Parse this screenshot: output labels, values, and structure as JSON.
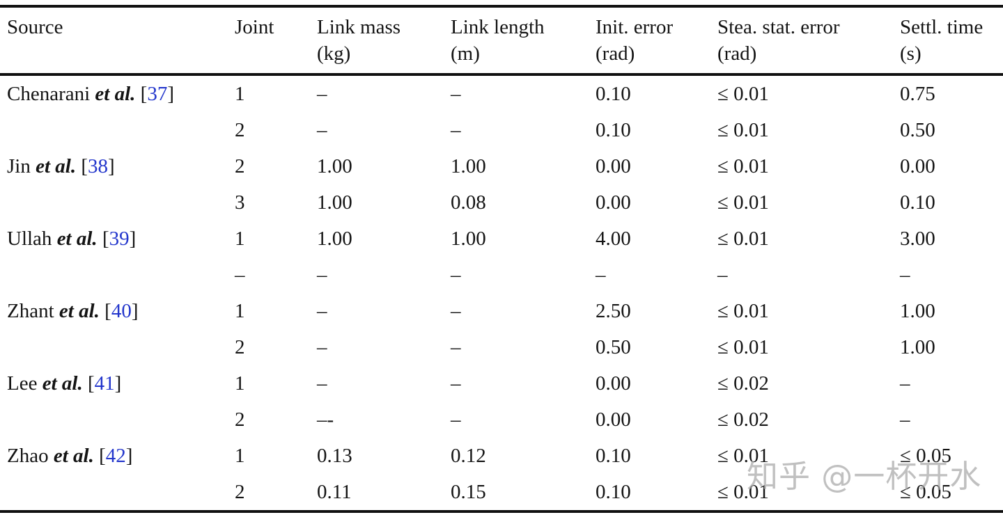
{
  "table": {
    "columns": [
      {
        "key": "source",
        "label": "Source",
        "unit": ""
      },
      {
        "key": "joint",
        "label": "Joint",
        "unit": ""
      },
      {
        "key": "link_mass",
        "label": "Link mass",
        "unit": "(kg)"
      },
      {
        "key": "link_length",
        "label": "Link length",
        "unit": "(m)"
      },
      {
        "key": "init_error",
        "label": "Init. error",
        "unit": "(rad)"
      },
      {
        "key": "stea_stat_error",
        "label": "Stea. stat. error",
        "unit": "(rad)"
      },
      {
        "key": "settl_time",
        "label": "Settl. time",
        "unit": "(s)"
      }
    ],
    "rows": [
      {
        "source_name": "Chenarani",
        "source_etal": "et al.",
        "ref": "37",
        "joint": "1",
        "link_mass": "–",
        "link_length": "–",
        "init_error": "0.10",
        "stea_stat_error": "≤ 0.01",
        "settl_time": "0.75"
      },
      {
        "source_name": "",
        "source_etal": "",
        "ref": "",
        "joint": "2",
        "link_mass": "–",
        "link_length": "–",
        "init_error": "0.10",
        "stea_stat_error": "≤ 0.01",
        "settl_time": "0.50"
      },
      {
        "source_name": "Jin",
        "source_etal": "et al.",
        "ref": "38",
        "joint": "2",
        "link_mass": "1.00",
        "link_length": "1.00",
        "init_error": "0.00",
        "stea_stat_error": "≤ 0.01",
        "settl_time": "0.00"
      },
      {
        "source_name": "",
        "source_etal": "",
        "ref": "",
        "joint": "3",
        "link_mass": "1.00",
        "link_length": "0.08",
        "init_error": "0.00",
        "stea_stat_error": "≤ 0.01",
        "settl_time": "0.10"
      },
      {
        "source_name": "Ullah",
        "source_etal": "et al.",
        "ref": "39",
        "joint": "1",
        "link_mass": "1.00",
        "link_length": "1.00",
        "init_error": "4.00",
        "stea_stat_error": "≤ 0.01",
        "settl_time": "3.00"
      },
      {
        "source_name": "",
        "source_etal": "",
        "ref": "",
        "joint": "–",
        "link_mass": "–",
        "link_length": "–",
        "init_error": "–",
        "stea_stat_error": "–",
        "settl_time": "–"
      },
      {
        "source_name": "Zhant",
        "source_etal": "et al.",
        "ref": "40",
        "joint": "1",
        "link_mass": "–",
        "link_length": "–",
        "init_error": "2.50",
        "stea_stat_error": "≤ 0.01",
        "settl_time": "1.00"
      },
      {
        "source_name": "",
        "source_etal": "",
        "ref": "",
        "joint": "2",
        "link_mass": "–",
        "link_length": "–",
        "init_error": "0.50",
        "stea_stat_error": "≤ 0.01",
        "settl_time": "1.00"
      },
      {
        "source_name": "Lee",
        "source_etal": "et al.",
        "ref": "41",
        "joint": "1",
        "link_mass": "–",
        "link_length": "–",
        "init_error": "0.00",
        "stea_stat_error": "≤ 0.02",
        "settl_time": "–"
      },
      {
        "source_name": "",
        "source_etal": "",
        "ref": "",
        "joint": "2",
        "link_mass": "–-",
        "link_length": "–",
        "init_error": "0.00",
        "stea_stat_error": "≤ 0.02",
        "settl_time": "–"
      },
      {
        "source_name": "Zhao",
        "source_etal": "et al.",
        "ref": "42",
        "joint": "1",
        "link_mass": "0.13",
        "link_length": "0.12",
        "init_error": "0.10",
        "stea_stat_error": "≤ 0.01",
        "settl_time": "≤ 0.05"
      },
      {
        "source_name": "",
        "source_etal": "",
        "ref": "",
        "joint": "2",
        "link_mass": "0.11",
        "link_length": "0.15",
        "init_error": "0.10",
        "stea_stat_error": "≤ 0.01",
        "settl_time": "≤ 0.05"
      }
    ]
  },
  "watermark": {
    "text": "知乎 @一杯开水"
  },
  "colors": {
    "text": "#141414",
    "rule": "#101010",
    "citation_blue": "#2336cc",
    "watermark_gray": "#a8a8a8",
    "background": "#ffffff"
  }
}
